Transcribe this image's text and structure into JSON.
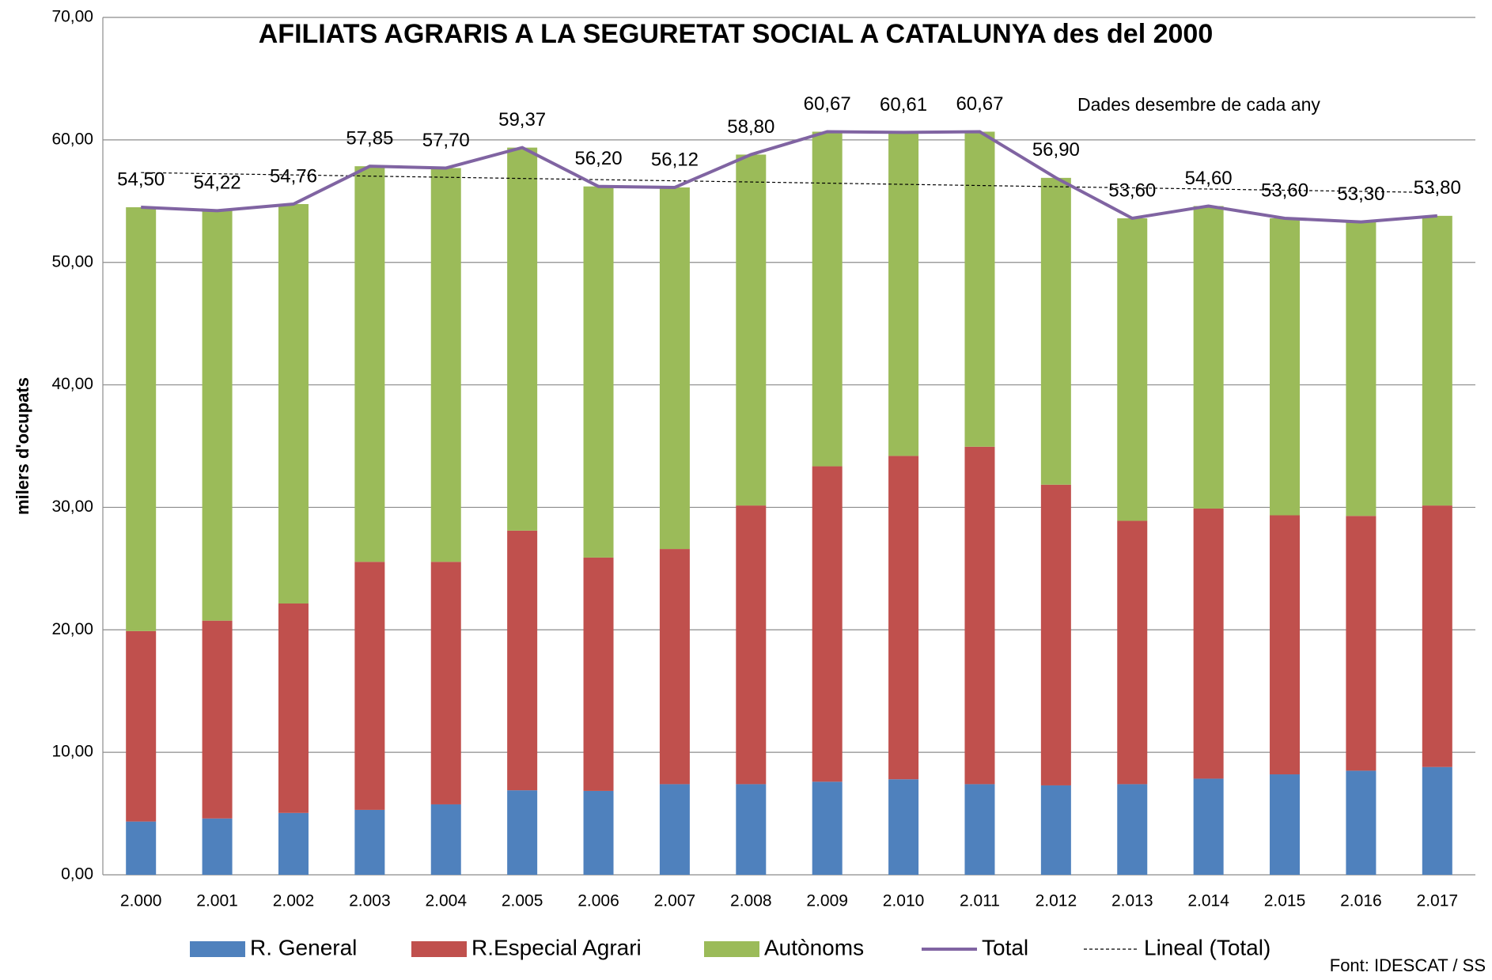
{
  "chart_data": {
    "type": "stacked-bar-line",
    "title": "AFILIATS AGRARIS A LA SEGURETAT SOCIAL A CATALUNYA des del 2000",
    "y_label": "milers d'ocupats",
    "annotations": [
      "Dades desembre de cada any",
      "Font: IDESCAT / SS"
    ],
    "categories": [
      "2.000",
      "2.001",
      "2.002",
      "2.003",
      "2.004",
      "2.005",
      "2.006",
      "2.007",
      "2.008",
      "2.009",
      "2.010",
      "2.011",
      "2.012",
      "2.013",
      "2.014",
      "2.015",
      "2.016",
      "2.017"
    ],
    "series": [
      {
        "name": "R. General",
        "color": "#4f81bd",
        "values": [
          4.35,
          4.6,
          5.05,
          5.3,
          5.75,
          6.9,
          6.85,
          7.4,
          7.4,
          7.6,
          7.8,
          7.4,
          7.3,
          7.4,
          7.85,
          8.2,
          8.5,
          8.8
        ]
      },
      {
        "name": "R.Especial Agrari",
        "color": "#c0504d",
        "values": [
          15.55,
          16.15,
          17.1,
          20.25,
          19.8,
          21.2,
          19.05,
          19.2,
          22.75,
          25.75,
          26.4,
          27.55,
          24.55,
          21.5,
          22.05,
          21.15,
          20.8,
          21.35
        ]
      },
      {
        "name": "Autònoms",
        "color": "#9bbb59",
        "values": [
          34.6,
          33.47,
          32.61,
          32.3,
          32.15,
          31.27,
          30.3,
          29.52,
          28.65,
          27.32,
          26.41,
          25.72,
          25.05,
          24.7,
          24.7,
          24.25,
          24.0,
          23.65
        ]
      },
      {
        "name": "Total",
        "color": "#8064a2",
        "type": "line",
        "values": [
          54.5,
          54.22,
          54.76,
          57.85,
          57.7,
          59.37,
          56.2,
          56.12,
          58.8,
          60.67,
          60.61,
          60.67,
          56.9,
          53.6,
          54.6,
          53.6,
          53.3,
          53.8
        ],
        "value_labels": [
          "54,50",
          "54,22",
          "54,76",
          "57,85",
          "57,70",
          "59,37",
          "56,20",
          "56,12",
          "58,80",
          "60,67",
          "60,61",
          "60,67",
          "56,90",
          "53,60",
          "54,60",
          "53,60",
          "53,30",
          "53,80"
        ]
      }
    ],
    "trendline": {
      "name": "Lineal (Total)",
      "color": "#000000"
    },
    "ylim": [
      0,
      70
    ],
    "yticks": [
      {
        "value": 0,
        "label": "0,00"
      },
      {
        "value": 10,
        "label": "10,00"
      },
      {
        "value": 20,
        "label": "20,00"
      },
      {
        "value": 30,
        "label": "30,00"
      },
      {
        "value": 40,
        "label": "40,00"
      },
      {
        "value": 50,
        "label": "50,00"
      },
      {
        "value": 60,
        "label": "60,00"
      },
      {
        "value": 70,
        "label": "70,00"
      }
    ],
    "grid": true
  }
}
